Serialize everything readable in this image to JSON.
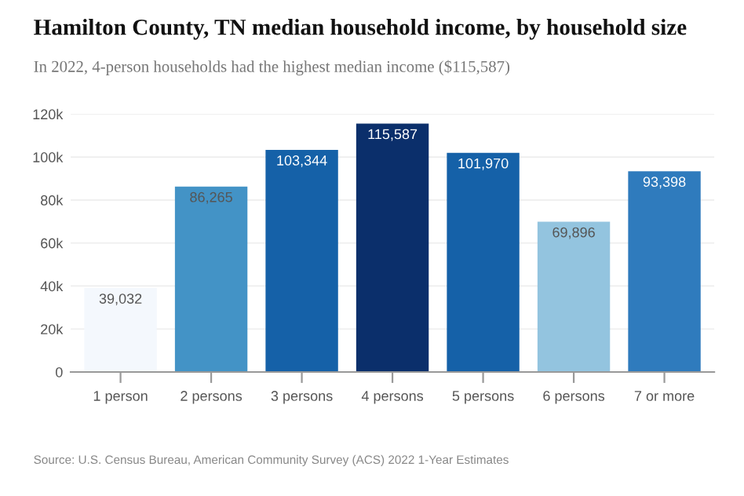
{
  "chart_data": {
    "type": "bar",
    "title": "Hamilton County, TN median household income, by household size",
    "subtitle": "In 2022, 4-person households had the highest median income ($115,587)",
    "categories": [
      "1 person",
      "2 persons",
      "3 persons",
      "4 persons",
      "5 persons",
      "6 persons",
      "7 or more"
    ],
    "values": [
      39032,
      86265,
      103344,
      115587,
      101970,
      69896,
      93398
    ],
    "colors": [
      "#f4f8fd",
      "#4393c6",
      "#1561a8",
      "#0b2f6b",
      "#1561a8",
      "#93c4df",
      "#2f7bbd"
    ],
    "value_labels": [
      "39,032",
      "86,265",
      "103,344",
      "115,587",
      "101,970",
      "69,896",
      "93,398"
    ],
    "ylim": [
      0,
      120000
    ],
    "yticks": [
      {
        "value": 0,
        "label": "0"
      },
      {
        "value": 20000,
        "label": "20k"
      },
      {
        "value": 40000,
        "label": "40k"
      },
      {
        "value": 60000,
        "label": "60k"
      },
      {
        "value": 80000,
        "label": "80k"
      },
      {
        "value": 100000,
        "label": "100k"
      },
      {
        "value": 120000,
        "label": "120k"
      }
    ],
    "grid": "y",
    "annotations": [
      "Source: U.S. Census Bureau, American Community Survey (ACS) 2022 1-Year Estimates"
    ]
  }
}
